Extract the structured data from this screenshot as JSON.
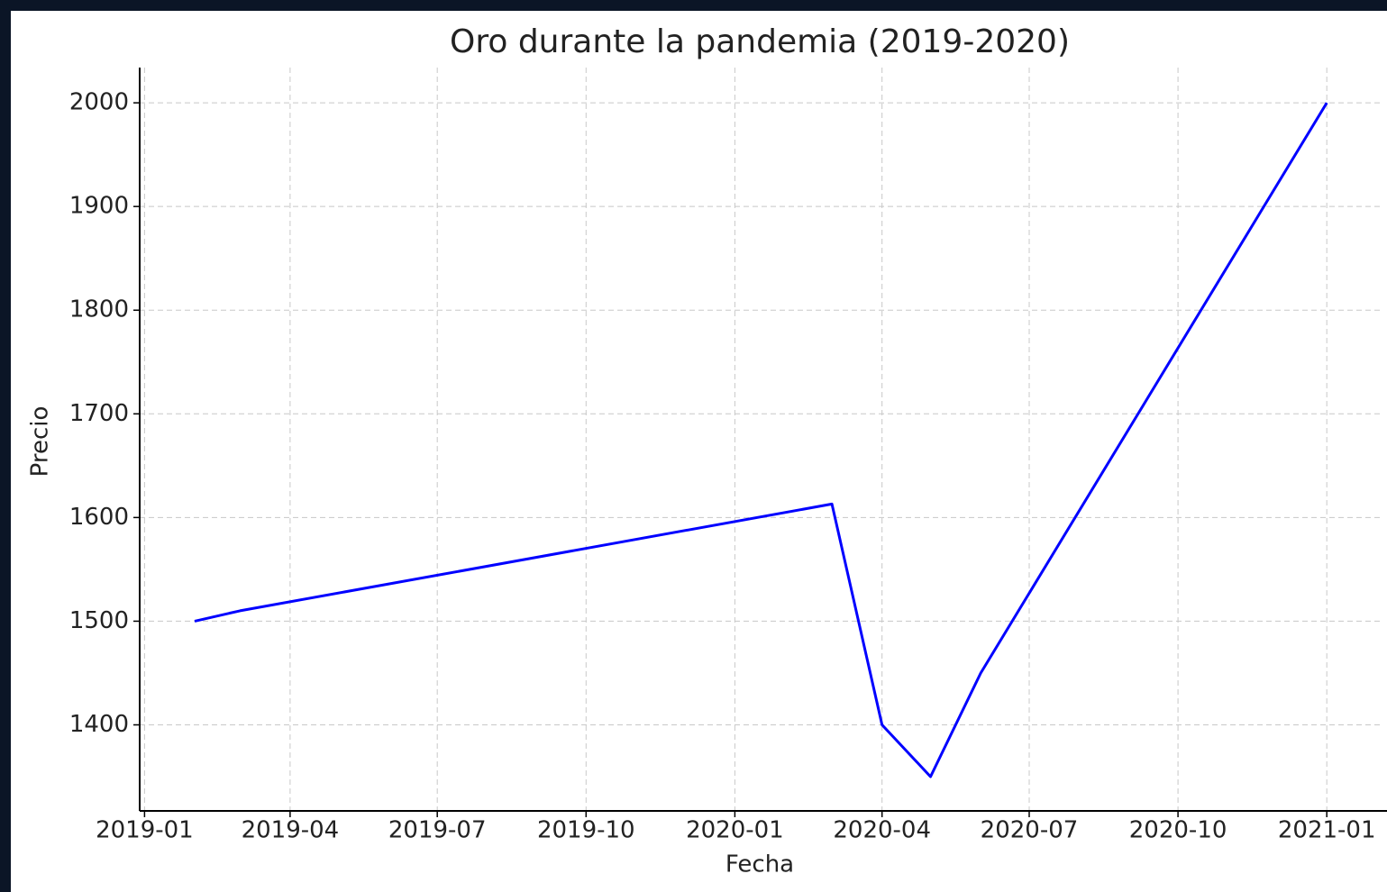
{
  "chart_data": {
    "type": "line",
    "title": "Oro durante la pandemia (2019-2020)",
    "x_label": "Fecha",
    "y_label": "Precio",
    "x": [
      "2019-02",
      "2019-03",
      "2020-03",
      "2020-04",
      "2020-05",
      "2020-06",
      "2021-01"
    ],
    "series": [
      {
        "color": "#0000ff",
        "values": [
          1500,
          1510,
          1613,
          1400,
          1350,
          1450,
          2000
        ]
      }
    ],
    "xlim": [
      "2018-12-29",
      "2021-01-36"
    ],
    "xticks": [
      "2019-01",
      "2019-04",
      "2019-07",
      "2019-10",
      "2020-01",
      "2020-04",
      "2020-07",
      "2020-10",
      "2021-01"
    ],
    "ylim": [
      1317,
      2034
    ],
    "yticks": [
      1400,
      1500,
      1600,
      1700,
      1800,
      1900,
      2000
    ],
    "grid": true
  }
}
